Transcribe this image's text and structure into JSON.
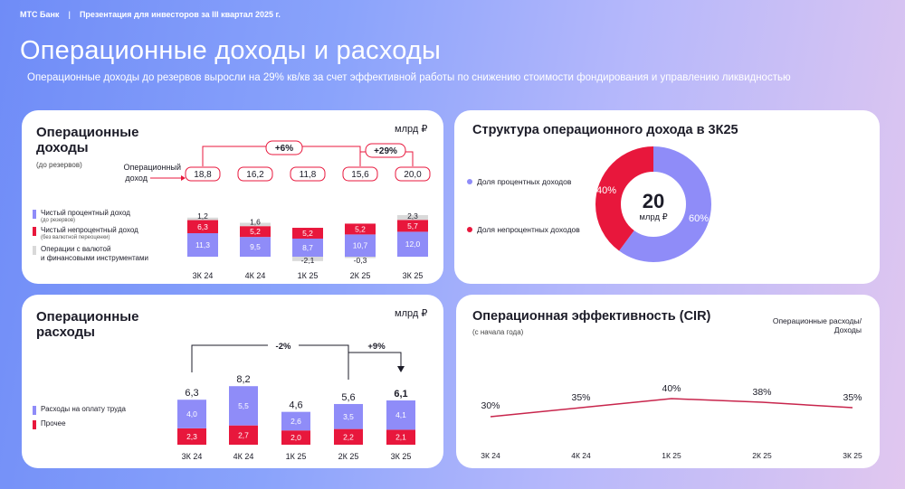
{
  "header": {
    "bank": "МТС Банк",
    "separator": "|",
    "presentation": "Презентация для инвесторов за III квартал 2025 г."
  },
  "page": {
    "title": "Операционные доходы и расходы",
    "subtitle": "Операционные доходы до резервов выросли на 29% кв/кв за счет эффективной работы по снижению стоимости фондирования и управлению ликвидностью"
  },
  "colors": {
    "purple": "#8f8cf8",
    "red": "#e8173c",
    "gray": "#d9d9d9",
    "line": "#c8254c"
  },
  "income_card": {
    "title_line1": "Операционные",
    "title_line2": "доходы",
    "note": "(до резервов)",
    "unit": "млрд ₽",
    "op_income_label_line1": "Операционный",
    "op_income_label_line2": "доход",
    "growth_qoq_6": "+6%",
    "growth_qoq_29": "+29%",
    "legend": [
      {
        "label": "Чистый процентный доход",
        "sub": "(до резервов)"
      },
      {
        "label": "Чистый непроцентный доход",
        "sub": "(без валютной переоценки)"
      },
      {
        "label": "Операции с валютой",
        "sub": "",
        "label2": "и финансовыми инструментами"
      }
    ]
  },
  "structure_card": {
    "title": "Структура операционного дохода в 3К25",
    "center_value": "20",
    "center_unit": "млрд ₽",
    "legend": [
      "Доля процентных доходов",
      "Доля непроцентных доходов"
    ],
    "pct_labels": [
      "60%",
      "40%"
    ]
  },
  "expenses_card": {
    "title_line1": "Операционные",
    "title_line2": "расходы",
    "unit": "млрд ₽",
    "growth_yoy": "-2%",
    "growth_qoq": "+9%",
    "legend": [
      "Расходы на оплату труда",
      "Прочее"
    ]
  },
  "cir_card": {
    "title": "Операционная эффективность (CIR)",
    "note": "(с начала года)",
    "right_label_line1": "Операционные расходы/",
    "right_label_line2": "Доходы"
  },
  "chart_data": [
    {
      "type": "bar",
      "stacked": true,
      "title": "Операционные доходы",
      "categories": [
        "3К 24",
        "4К 24",
        "1К 25",
        "2К 25",
        "3К 25"
      ],
      "totals": [
        "18,8",
        "16,2",
        "11,8",
        "15,6",
        "20,0"
      ],
      "series": [
        {
          "name": "Чистый процентный доход",
          "values": [
            11.3,
            9.5,
            8.7,
            10.7,
            12.0
          ],
          "labels": [
            "11,3",
            "9,5",
            "8,7",
            "10,7",
            "12,0"
          ]
        },
        {
          "name": "Чистый непроцентный доход",
          "values": [
            6.3,
            5.2,
            5.2,
            5.2,
            5.7
          ],
          "labels": [
            "6,3",
            "5,2",
            "5,2",
            "5,2",
            "5,7"
          ]
        },
        {
          "name": "Операции с валютой и финансовыми инструментами",
          "values": [
            1.2,
            1.6,
            -2.1,
            -0.3,
            2.3
          ],
          "labels": [
            "1,2",
            "1,6",
            "-2,1",
            "-0,3",
            "2,3"
          ]
        }
      ]
    },
    {
      "type": "pie",
      "title": "Структура операционного дохода в 3К25",
      "series": [
        {
          "name": "Доля процентных доходов",
          "value": 60
        },
        {
          "name": "Доля непроцентных доходов",
          "value": 40
        }
      ]
    },
    {
      "type": "bar",
      "stacked": true,
      "title": "Операционные расходы",
      "categories": [
        "3К 24",
        "4К 24",
        "1К 25",
        "2К 25",
        "3К 25"
      ],
      "totals": [
        "6,3",
        "8,2",
        "4,6",
        "5,6",
        "6,1"
      ],
      "series": [
        {
          "name": "Расходы на оплату труда",
          "values": [
            4.0,
            5.5,
            2.6,
            3.5,
            4.1
          ],
          "labels": [
            "4,0",
            "5,5",
            "2,6",
            "3,5",
            "4,1"
          ]
        },
        {
          "name": "Прочее",
          "values": [
            2.3,
            2.7,
            2.0,
            2.2,
            2.1
          ],
          "labels": [
            "2,3",
            "2,7",
            "2,0",
            "2,2",
            "2,1"
          ]
        }
      ]
    },
    {
      "type": "line",
      "title": "Операционная эффективность (CIR)",
      "categories": [
        "3К 24",
        "4К 24",
        "1К 25",
        "2К 25",
        "3К 25"
      ],
      "values": [
        30,
        35,
        40,
        38,
        35
      ],
      "labels": [
        "30%",
        "35%",
        "40%",
        "38%",
        "35%"
      ]
    }
  ]
}
